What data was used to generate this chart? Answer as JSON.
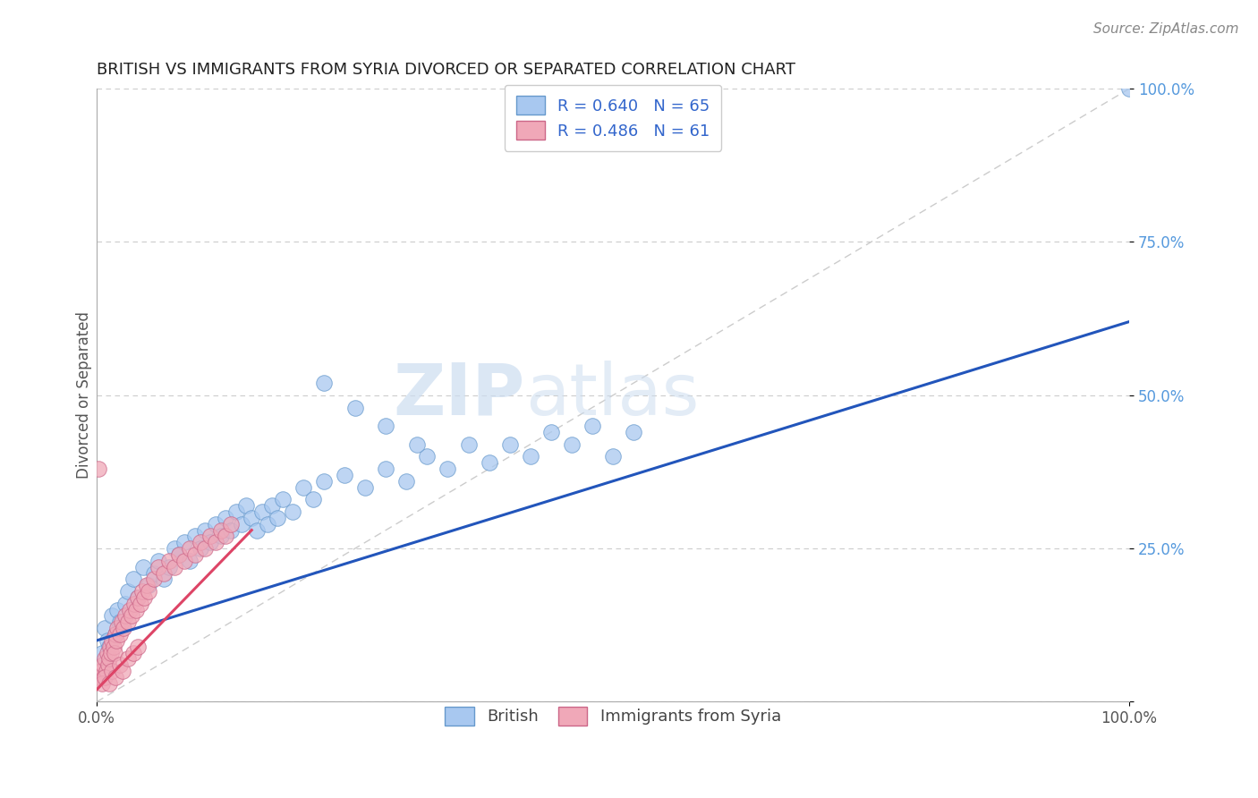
{
  "title": "BRITISH VS IMMIGRANTS FROM SYRIA DIVORCED OR SEPARATED CORRELATION CHART",
  "source": "Source: ZipAtlas.com",
  "ylabel": "Divorced or Separated",
  "xlim": [
    0,
    1.0
  ],
  "ylim": [
    0,
    1.0
  ],
  "ytick_vals": [
    0.0,
    0.25,
    0.5,
    0.75,
    1.0
  ],
  "ytick_labels": [
    "",
    "25.0%",
    "50.0%",
    "75.0%",
    "100.0%"
  ],
  "diagonal_color": "#cccccc",
  "watermark_zip": "ZIP",
  "watermark_atlas": "atlas",
  "british_color": "#a8c8f0",
  "british_edge": "#6699cc",
  "syria_color": "#f0a8b8",
  "syria_edge": "#cc6688",
  "british_line_color": "#2255bb",
  "syria_line_color": "#dd4466",
  "legend_label1": "R = 0.640   N = 65",
  "legend_label2": "R = 0.486   N = 61",
  "bottom_label1": "British",
  "bottom_label2": "Immigrants from Syria",
  "title_fontsize": 13,
  "tick_fontsize": 12,
  "source_fontsize": 11,
  "british_line_start_x": 0.0,
  "british_line_end_x": 1.0,
  "british_line_start_y": 0.1,
  "british_line_end_y": 0.62,
  "syria_line_start_x": 0.0,
  "syria_line_end_x": 0.15,
  "syria_line_start_y": 0.02,
  "syria_line_end_y": 0.28,
  "brit_x": [
    0.005,
    0.008,
    0.01,
    0.012,
    0.015,
    0.018,
    0.02,
    0.022,
    0.025,
    0.028,
    0.03,
    0.035,
    0.04,
    0.045,
    0.05,
    0.055,
    0.06,
    0.065,
    0.07,
    0.075,
    0.08,
    0.085,
    0.09,
    0.095,
    0.1,
    0.105,
    0.11,
    0.115,
    0.12,
    0.125,
    0.13,
    0.135,
    0.14,
    0.145,
    0.15,
    0.155,
    0.16,
    0.165,
    0.17,
    0.175,
    0.18,
    0.19,
    0.2,
    0.21,
    0.22,
    0.24,
    0.26,
    0.28,
    0.3,
    0.32,
    0.34,
    0.36,
    0.38,
    0.4,
    0.42,
    0.44,
    0.46,
    0.48,
    0.5,
    0.52,
    0.22,
    0.25,
    0.28,
    0.31,
    1.0
  ],
  "brit_y": [
    0.08,
    0.12,
    0.1,
    0.09,
    0.14,
    0.11,
    0.15,
    0.13,
    0.12,
    0.16,
    0.18,
    0.2,
    0.17,
    0.22,
    0.19,
    0.21,
    0.23,
    0.2,
    0.22,
    0.25,
    0.24,
    0.26,
    0.23,
    0.27,
    0.25,
    0.28,
    0.26,
    0.29,
    0.27,
    0.3,
    0.28,
    0.31,
    0.29,
    0.32,
    0.3,
    0.28,
    0.31,
    0.29,
    0.32,
    0.3,
    0.33,
    0.31,
    0.35,
    0.33,
    0.36,
    0.37,
    0.35,
    0.38,
    0.36,
    0.4,
    0.38,
    0.42,
    0.39,
    0.42,
    0.4,
    0.44,
    0.42,
    0.45,
    0.4,
    0.44,
    0.52,
    0.48,
    0.45,
    0.42,
    1.0
  ],
  "syr_x": [
    0.002,
    0.003,
    0.004,
    0.005,
    0.006,
    0.007,
    0.008,
    0.009,
    0.01,
    0.011,
    0.012,
    0.013,
    0.014,
    0.015,
    0.016,
    0.017,
    0.018,
    0.019,
    0.02,
    0.022,
    0.024,
    0.026,
    0.028,
    0.03,
    0.032,
    0.034,
    0.036,
    0.038,
    0.04,
    0.042,
    0.044,
    0.046,
    0.048,
    0.05,
    0.055,
    0.06,
    0.065,
    0.07,
    0.075,
    0.08,
    0.085,
    0.09,
    0.095,
    0.1,
    0.105,
    0.11,
    0.115,
    0.12,
    0.125,
    0.13,
    0.005,
    0.008,
    0.012,
    0.015,
    0.018,
    0.022,
    0.025,
    0.03,
    0.035,
    0.04,
    0.002
  ],
  "syr_y": [
    0.04,
    0.05,
    0.04,
    0.05,
    0.06,
    0.04,
    0.07,
    0.05,
    0.08,
    0.06,
    0.07,
    0.09,
    0.08,
    0.1,
    0.09,
    0.08,
    0.11,
    0.1,
    0.12,
    0.11,
    0.13,
    0.12,
    0.14,
    0.13,
    0.15,
    0.14,
    0.16,
    0.15,
    0.17,
    0.16,
    0.18,
    0.17,
    0.19,
    0.18,
    0.2,
    0.22,
    0.21,
    0.23,
    0.22,
    0.24,
    0.23,
    0.25,
    0.24,
    0.26,
    0.25,
    0.27,
    0.26,
    0.28,
    0.27,
    0.29,
    0.03,
    0.04,
    0.03,
    0.05,
    0.04,
    0.06,
    0.05,
    0.07,
    0.08,
    0.09,
    0.38
  ]
}
